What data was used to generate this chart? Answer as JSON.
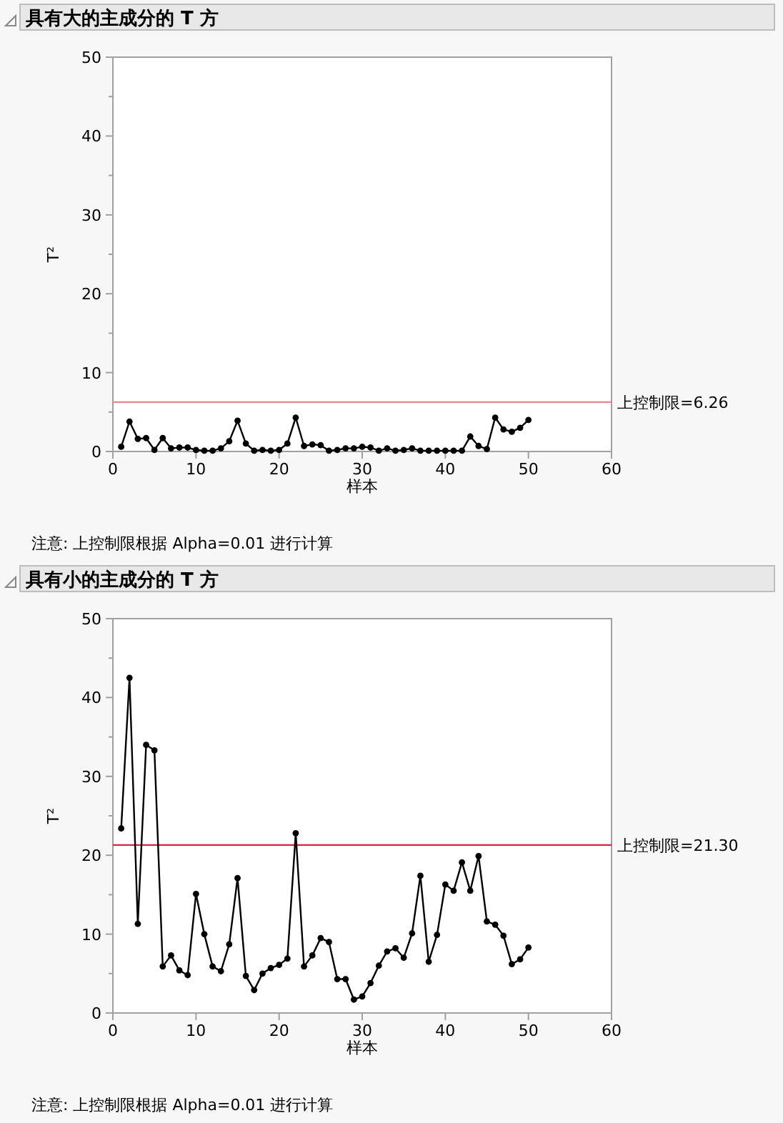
{
  "chart_data": [
    {
      "type": "line",
      "title": "具有大的主成分的 T 方",
      "xlabel": "样本",
      "ylabel": "T²",
      "marker": "circle",
      "line_style": "solid",
      "grid": false,
      "x": [
        1,
        2,
        3,
        4,
        5,
        6,
        7,
        8,
        9,
        10,
        11,
        12,
        13,
        14,
        15,
        16,
        17,
        18,
        19,
        20,
        21,
        22,
        23,
        24,
        25,
        26,
        27,
        28,
        29,
        30,
        31,
        32,
        33,
        34,
        35,
        36,
        37,
        38,
        39,
        40,
        41,
        42,
        43,
        44,
        45,
        46,
        47,
        48,
        49,
        50
      ],
      "series": [
        {
          "color": "#000000",
          "values": [
            0.6,
            3.8,
            1.6,
            1.7,
            0.2,
            1.7,
            0.4,
            0.5,
            0.5,
            0.2,
            0.1,
            0.1,
            0.4,
            1.3,
            3.9,
            1.0,
            0.1,
            0.2,
            0.1,
            0.2,
            1.0,
            4.3,
            0.7,
            0.9,
            0.8,
            0.1,
            0.2,
            0.4,
            0.4,
            0.6,
            0.5,
            0.1,
            0.4,
            0.1,
            0.2,
            0.4,
            0.1,
            0.1,
            0.1,
            0.1,
            0.1,
            0.1,
            1.9,
            0.7,
            0.3,
            4.3,
            2.8,
            2.5,
            3.0,
            4.0
          ]
        }
      ],
      "xlim": [
        0,
        60
      ],
      "xticks": [
        0,
        10,
        20,
        30,
        40,
        50,
        60
      ],
      "ylim": [
        0,
        50
      ],
      "yticks": [
        0,
        {
          "value": 5,
          "label": null
        },
        10,
        {
          "value": 15,
          "label": null
        },
        20,
        {
          "value": 25,
          "label": null
        },
        30,
        {
          "value": 35,
          "label": null
        },
        40,
        {
          "value": 45,
          "label": null
        },
        50
      ],
      "ref_lines": [
        {
          "axis": "y",
          "value": 6.26,
          "label": "上控制限=6.26",
          "color": "#e8868c"
        }
      ],
      "annotations": [
        "注意: 上控制限根据 Alpha=0.01 进行计算"
      ]
    },
    {
      "type": "line",
      "title": "具有小的主成分的 T 方",
      "xlabel": "样本",
      "ylabel": "T²",
      "marker": "circle",
      "line_style": "solid",
      "grid": false,
      "x": [
        1,
        2,
        3,
        4,
        5,
        6,
        7,
        8,
        9,
        10,
        11,
        12,
        13,
        14,
        15,
        16,
        17,
        18,
        19,
        20,
        21,
        22,
        23,
        24,
        25,
        26,
        27,
        28,
        29,
        30,
        31,
        32,
        33,
        34,
        35,
        36,
        37,
        38,
        39,
        40,
        41,
        42,
        43,
        44,
        45,
        46,
        47,
        48,
        49,
        50
      ],
      "series": [
        {
          "color": "#000000",
          "values": [
            23.4,
            42.5,
            11.3,
            34.0,
            33.3,
            5.9,
            7.3,
            5.4,
            4.8,
            15.1,
            10.0,
            5.9,
            5.3,
            8.7,
            17.1,
            4.7,
            2.9,
            5.0,
            5.7,
            6.1,
            6.9,
            22.8,
            5.9,
            7.3,
            9.5,
            9.0,
            4.3,
            4.3,
            1.7,
            2.1,
            3.8,
            6.0,
            7.8,
            8.2,
            7.0,
            10.1,
            17.4,
            6.5,
            9.9,
            16.3,
            15.5,
            19.1,
            15.5,
            19.9,
            11.6,
            11.2,
            9.8,
            6.2,
            6.8,
            8.3
          ]
        }
      ],
      "xlim": [
        0,
        60
      ],
      "xticks": [
        0,
        10,
        20,
        30,
        40,
        50,
        60
      ],
      "ylim": [
        0,
        50
      ],
      "yticks": [
        0,
        {
          "value": 5,
          "label": null
        },
        10,
        {
          "value": 15,
          "label": null
        },
        20,
        {
          "value": 25,
          "label": null
        },
        30,
        {
          "value": 35,
          "label": null
        },
        40,
        {
          "value": 45,
          "label": null
        },
        50
      ],
      "ref_lines": [
        {
          "axis": "y",
          "value": 21.3,
          "label": "上控制限=21.30",
          "color": "#d9243c"
        }
      ],
      "annotations": [
        "注意: 上控制限根据 Alpha=0.01 进行计算"
      ]
    }
  ]
}
